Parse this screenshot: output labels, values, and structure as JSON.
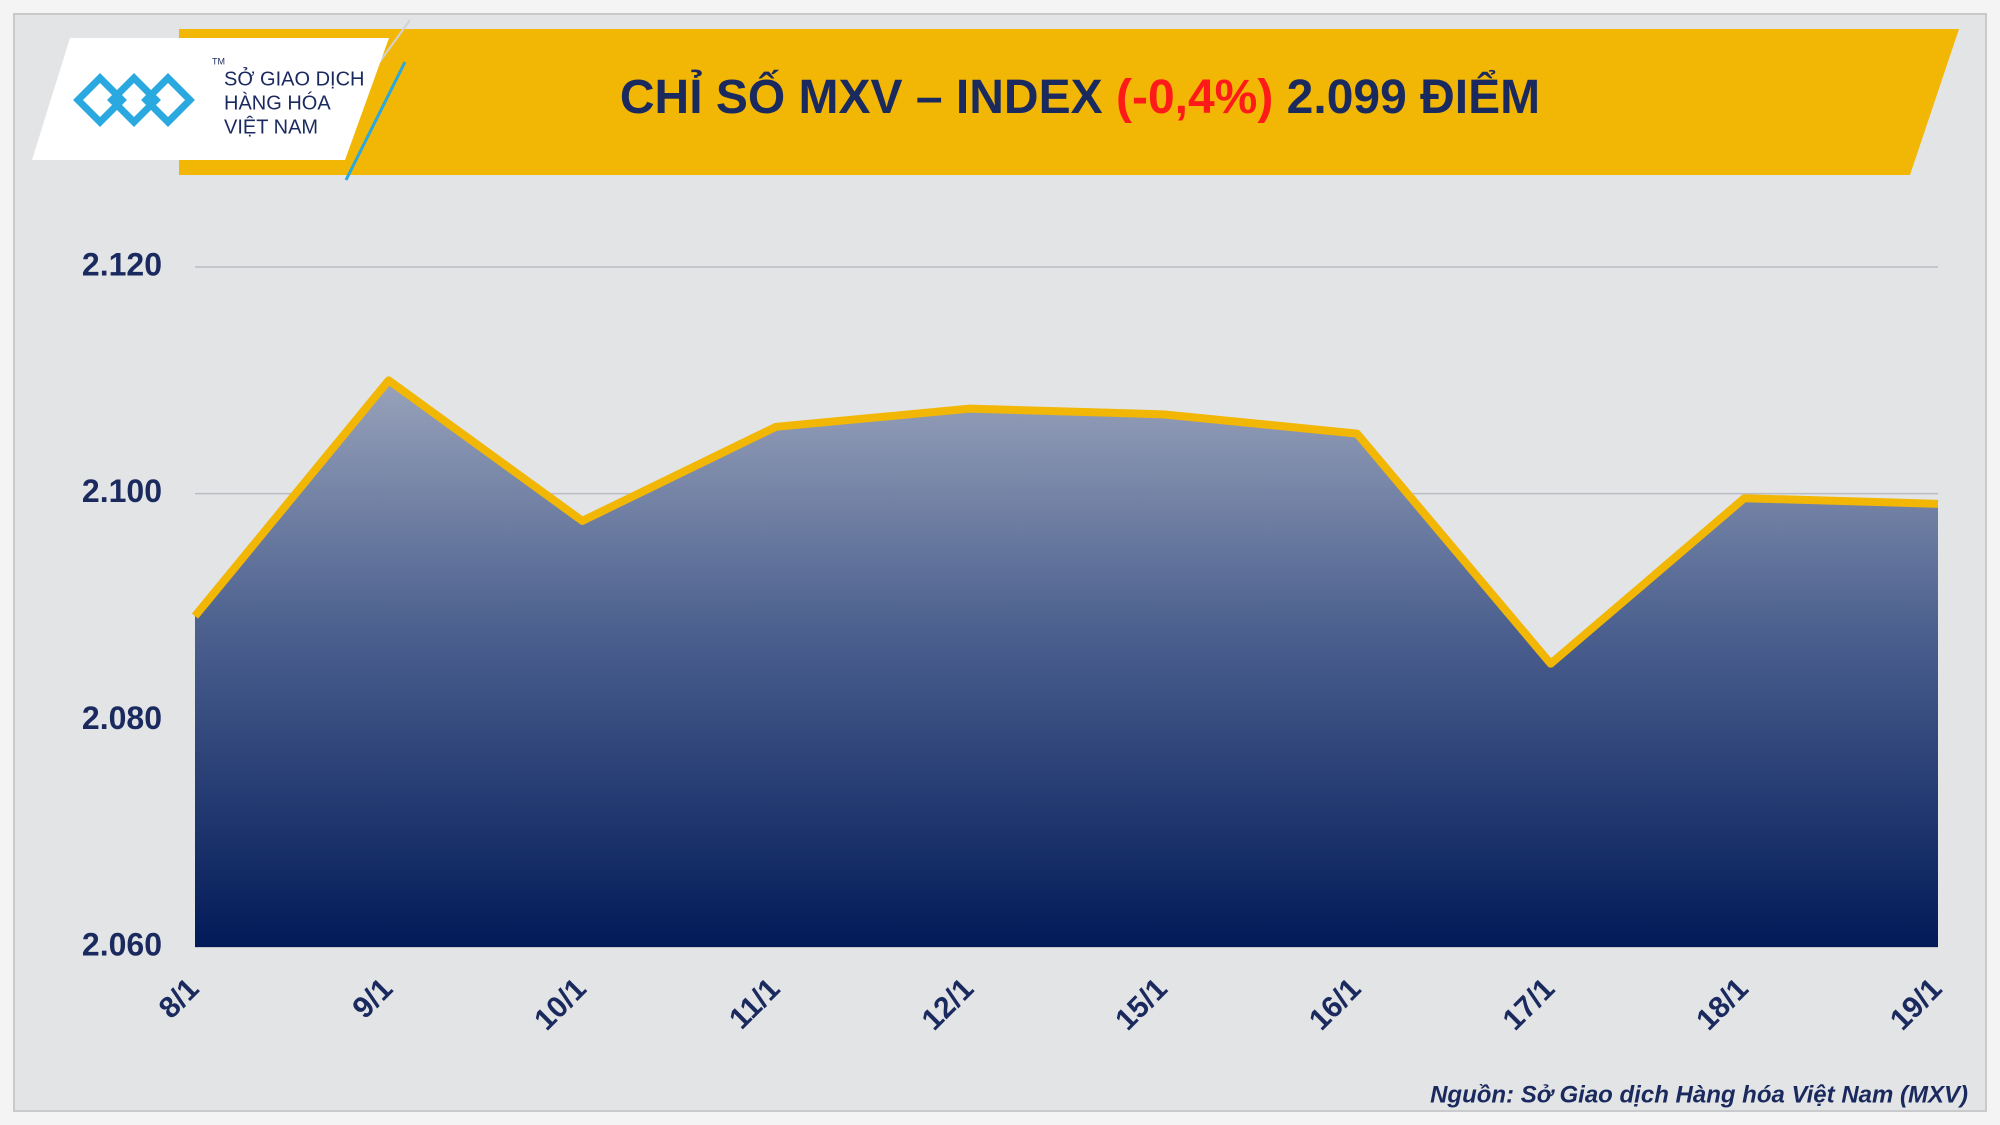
{
  "logo": {
    "lines": [
      "SỞ GIAO DỊCH",
      "HÀNG HÓA",
      "VIỆT NAM"
    ],
    "tm": "TM"
  },
  "chart_data": {
    "type": "line",
    "title_parts": [
      "CHỈ SỐ MXV – INDEX ",
      "(-0,4%)",
      " 2.099 ĐIỂM"
    ],
    "categories": [
      "8/1",
      "9/1",
      "10/1",
      "11/1",
      "12/1",
      "15/1",
      "16/1",
      "17/1",
      "18/1",
      "19/1"
    ],
    "values": [
      2089.2,
      2110,
      2097.6,
      2105.9,
      2107.5,
      2107,
      2105.3,
      2085,
      2099.6,
      2099.1
    ],
    "color": "#f2b705",
    "ylim": [
      2060,
      2120
    ],
    "yticks": [
      {
        "value": 2060,
        "label": "2.060"
      },
      {
        "value": 2080,
        "label": "2.080"
      },
      {
        "value": 2100,
        "label": "2.100"
      },
      {
        "value": 2120,
        "label": "2.120"
      }
    ],
    "grid": true,
    "source": "Nguồn: Sở Giao dịch Hàng hóa Việt Nam (MXV)"
  }
}
